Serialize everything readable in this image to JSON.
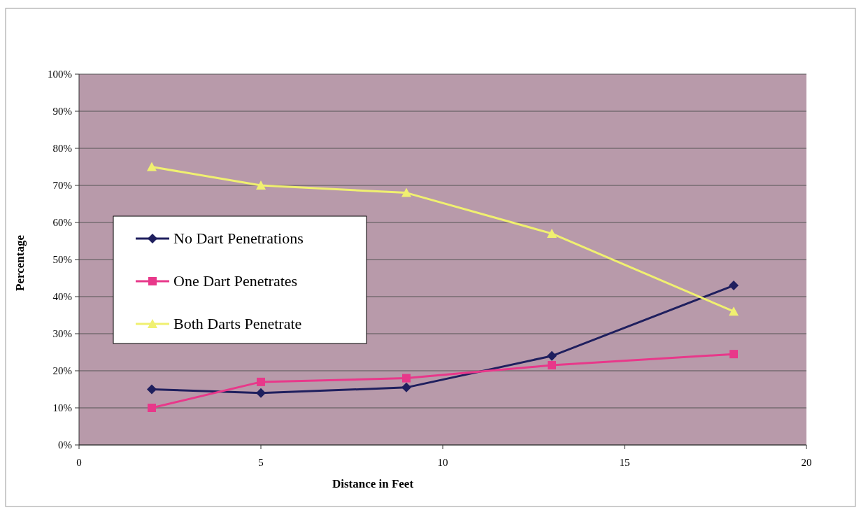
{
  "chart_data": {
    "type": "line",
    "xlabel": "Distance in Feet",
    "ylabel": "Percentage",
    "x": [
      2,
      5,
      9,
      13,
      18
    ],
    "series": [
      {
        "name": "No Dart Penetrations",
        "color": "#1f1f5e",
        "marker": "diamond",
        "values": [
          15,
          14,
          15.5,
          24,
          43
        ]
      },
      {
        "name": "One Dart Penetrates",
        "color": "#e8388a",
        "marker": "square",
        "values": [
          10,
          17,
          18,
          21.5,
          24.5
        ]
      },
      {
        "name": "Both Darts Penetrate",
        "color": "#f0f070",
        "marker": "triangle",
        "values": [
          75,
          70,
          68,
          57,
          36
        ]
      }
    ],
    "xlim": [
      0,
      20
    ],
    "xticks": [
      0,
      5,
      10,
      15,
      20
    ],
    "ylim": [
      0,
      100
    ],
    "yticks": [
      {
        "value": 0,
        "label": "0%"
      },
      {
        "value": 10,
        "label": "10%"
      },
      {
        "value": 20,
        "label": "20%"
      },
      {
        "value": 30,
        "label": "30%"
      },
      {
        "value": 40,
        "label": "40%"
      },
      {
        "value": 50,
        "label": "50%"
      },
      {
        "value": 60,
        "label": "60%"
      },
      {
        "value": 70,
        "label": "70%"
      },
      {
        "value": 80,
        "label": "80%"
      },
      {
        "value": 90,
        "label": "90%"
      },
      {
        "value": 100,
        "label": "100%"
      }
    ],
    "grid": "y",
    "legend": "left"
  }
}
